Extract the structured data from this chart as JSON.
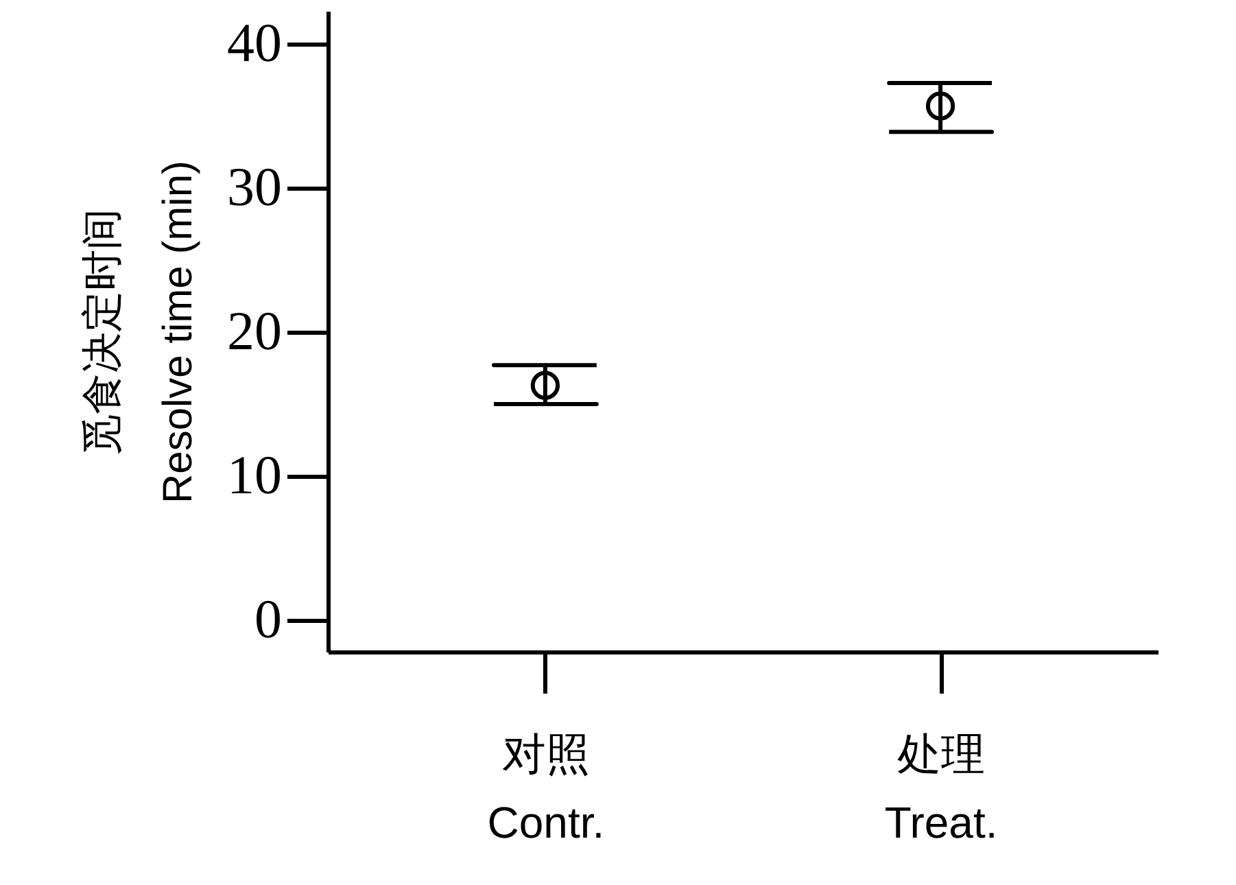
{
  "chart_data": {
    "type": "scatter",
    "categories": [
      "对照\nContr.",
      "处理\nTreat."
    ],
    "values": [
      16.3,
      35.7
    ],
    "errors": [
      [
        15.0,
        17.7
      ],
      [
        33.9,
        37.3
      ]
    ],
    "color": "#000000",
    "marker": "circle",
    "ylabel": "觅食决定时间\nResolve time (min)",
    "ylim": [
      -2.2,
      42.3
    ],
    "yticks": [
      0,
      10,
      20,
      30,
      40
    ],
    "grid": false
  }
}
